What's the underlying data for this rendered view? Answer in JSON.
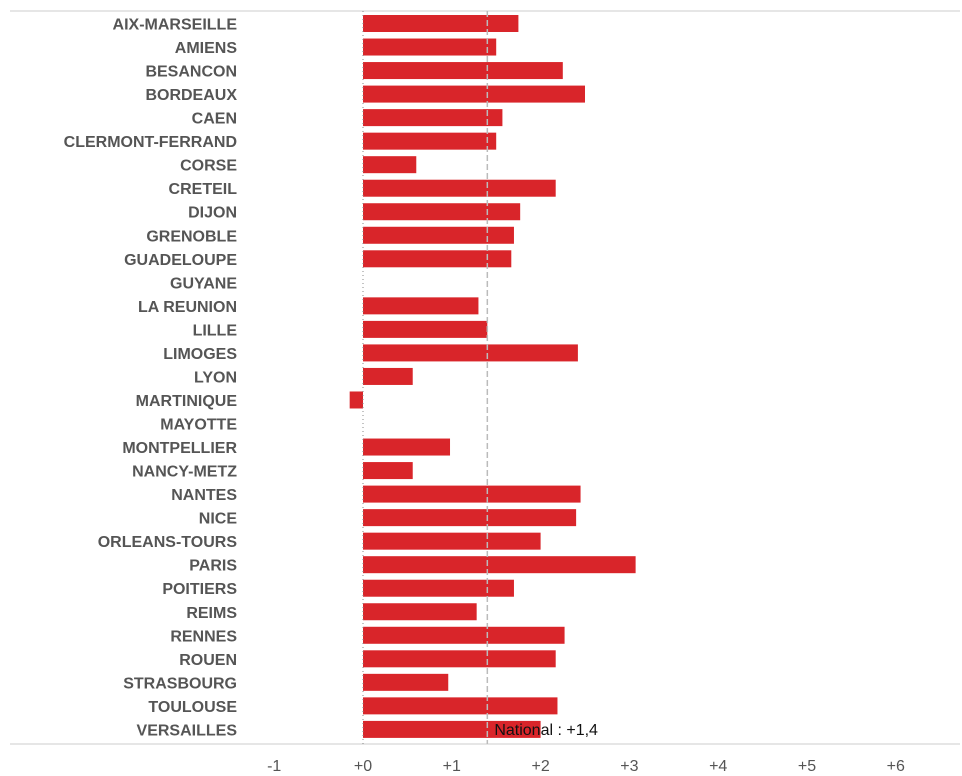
{
  "chart_data": {
    "type": "bar",
    "orientation": "horizontal",
    "categories": [
      "AIX-MARSEILLE",
      "AMIENS",
      "BESANCON",
      "BORDEAUX",
      "CAEN",
      "CLERMONT-FERRAND",
      "CORSE",
      "CRETEIL",
      "DIJON",
      "GRENOBLE",
      "GUADELOUPE",
      "GUYANE",
      "LA REUNION",
      "LILLE",
      "LIMOGES",
      "LYON",
      "MARTINIQUE",
      "MAYOTTE",
      "MONTPELLIER",
      "NANCY-METZ",
      "NANTES",
      "NICE",
      "ORLEANS-TOURS",
      "PARIS",
      "POITIERS",
      "REIMS",
      "RENNES",
      "ROUEN",
      "STRASBOURG",
      "TOULOUSE",
      "VERSAILLES"
    ],
    "values": [
      1.75,
      1.5,
      2.25,
      2.5,
      1.57,
      1.5,
      0.6,
      2.17,
      1.77,
      1.7,
      1.67,
      null,
      1.3,
      1.4,
      2.42,
      0.56,
      -0.15,
      null,
      0.98,
      0.56,
      2.45,
      2.4,
      2.0,
      3.07,
      1.7,
      1.28,
      2.27,
      2.17,
      0.96,
      2.19,
      2.0
    ],
    "xlim": [
      -1.3,
      6.8
    ],
    "x_ticks": [
      "-1",
      "+0",
      "+1",
      "+2",
      "+3",
      "+4",
      "+5",
      "+6"
    ],
    "x_tick_values": [
      -1,
      0,
      1,
      2,
      3,
      4,
      5,
      6
    ],
    "reference_line": {
      "value": 1.4,
      "label": "National : +1,4"
    },
    "bar_color": "#d9252a",
    "grid": false
  }
}
